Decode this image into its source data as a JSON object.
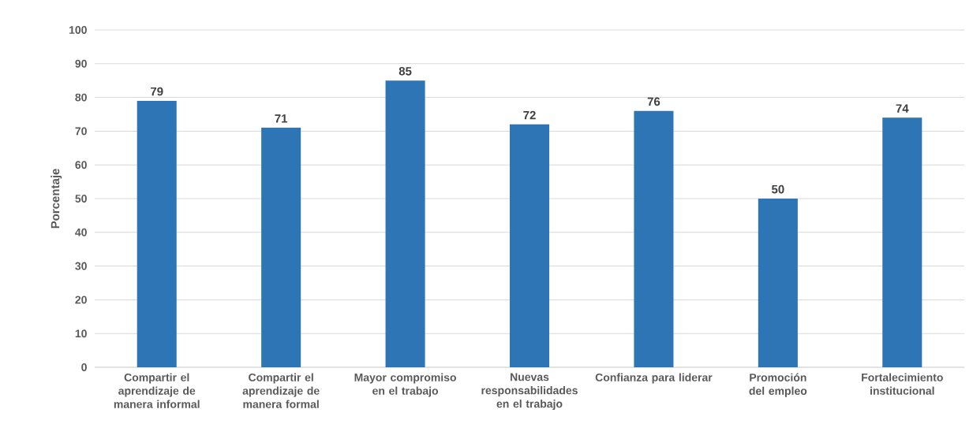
{
  "chart_data": {
    "type": "bar",
    "ylabel": "Porcentaje",
    "categories": [
      "Compartir el aprendizaje de manera informal",
      "Compartir el aprendizaje de manera formal",
      "Mayor compromiso en el trabajo",
      "Nuevas responsabilidades en el trabajo",
      "Confianza para liderar",
      "Promoción del empleo",
      "Fortalecimiento institucional"
    ],
    "values": [
      79,
      71,
      85,
      72,
      76,
      50,
      74
    ],
    "color": "#2e75b6",
    "ylim": [
      0,
      100
    ],
    "yticks": [
      0,
      10,
      20,
      30,
      40,
      50,
      60,
      70,
      80,
      90,
      100
    ],
    "grid": "y",
    "data_labels": true
  }
}
